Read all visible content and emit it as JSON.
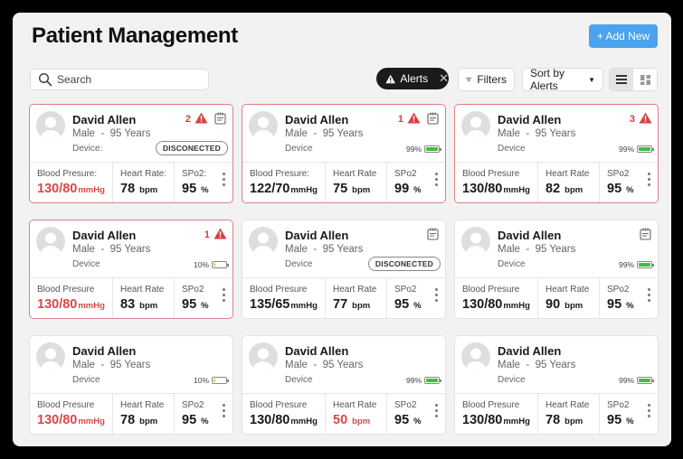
{
  "header": {
    "title": "Patient Management",
    "add_label": "+ Add New"
  },
  "toolbar": {
    "search_placeholder": "Search",
    "alerts_label": "Alerts",
    "filters_label": "Filters",
    "sort_label": "Sort by Alerts"
  },
  "colors": {
    "accent": "#4aa3ec",
    "alert": "#d93b3b",
    "battery_good": "#3fbf3f",
    "battery_low": "#f0c43a"
  },
  "cards": [
    {
      "name": "David Allen",
      "gender": "Male",
      "age": "95 Years",
      "device_label": "Device:",
      "alert_count": "2",
      "status": "DISCONECTED",
      "battery": "",
      "labels": [
        "Blood Presure:",
        "Heart Rate:",
        "SPo2:"
      ],
      "bp": "130/80",
      "bp_unit": "mmHg",
      "hr": "78",
      "hr_unit": "bpm",
      "spo2": "95",
      "spo2_unit": "%"
    },
    {
      "name": "David Allen",
      "gender": "Male",
      "age": "95 Years",
      "device_label": "Device",
      "alert_count": "1",
      "status": "",
      "battery": "99%",
      "labels": [
        "Blood Presure:",
        "Heart Rate",
        "SPo2"
      ],
      "bp": "122/70",
      "bp_unit": "mmHg",
      "hr": "75",
      "hr_unit": "bpm",
      "spo2": "99",
      "spo2_unit": "%"
    },
    {
      "name": "David Allen",
      "gender": "Male",
      "age": "95 Years",
      "device_label": "Device",
      "alert_count": "3",
      "status": "",
      "battery": "99%",
      "labels": [
        "Blood Presure",
        "Heart Rate",
        "SPo2"
      ],
      "bp": "130/80",
      "bp_unit": "mmHg",
      "hr": "82",
      "hr_unit": "bpm",
      "spo2": "95",
      "spo2_unit": "%"
    },
    {
      "name": "David Allen",
      "gender": "Male",
      "age": "95 Years",
      "device_label": "Device",
      "alert_count": "1",
      "status": "",
      "battery": "10%",
      "labels": [
        "Blood Presure",
        "Heart Rate",
        "SPo2"
      ],
      "bp": "130/80",
      "bp_unit": "mmHg",
      "hr": "83",
      "hr_unit": "bpm",
      "spo2": "95",
      "spo2_unit": "%"
    },
    {
      "name": "David Allen",
      "gender": "Male",
      "age": "95 Years",
      "device_label": "Device",
      "alert_count": "",
      "status": "DISCONECTED",
      "battery": "",
      "labels": [
        "Blood Presure",
        "Heart Rate",
        "SPo2"
      ],
      "bp": "135/65",
      "bp_unit": "mmHg",
      "hr": "77",
      "hr_unit": "bpm",
      "spo2": "95",
      "spo2_unit": "%"
    },
    {
      "name": "David Allen",
      "gender": "Male",
      "age": "95 Years",
      "device_label": "Device",
      "alert_count": "",
      "status": "",
      "battery": "99%",
      "labels": [
        "Blood Presure",
        "Heart Rate",
        "SPo2"
      ],
      "bp": "130/80",
      "bp_unit": "mmHg",
      "hr": "90",
      "hr_unit": "bpm",
      "spo2": "95",
      "spo2_unit": "%"
    },
    {
      "name": "David Allen",
      "gender": "Male",
      "age": "95 Years",
      "device_label": "Device",
      "alert_count": "",
      "status": "",
      "battery": "10%",
      "labels": [
        "Blood Presure",
        "Heart Rate",
        "SPo2"
      ],
      "bp": "130/80",
      "bp_unit": "mmHg",
      "hr": "78",
      "hr_unit": "bpm",
      "spo2": "95",
      "spo2_unit": "%"
    },
    {
      "name": "David Allen",
      "gender": "Male",
      "age": "95 Years",
      "device_label": "Device",
      "alert_count": "",
      "status": "",
      "battery": "99%",
      "labels": [
        "Blood Presure",
        "Heart Rate",
        "SPo2"
      ],
      "bp": "130/80",
      "bp_unit": "mmHg",
      "hr": "50",
      "hr_unit": "bpm",
      "spo2": "95",
      "spo2_unit": "%"
    },
    {
      "name": "David Allen",
      "gender": "Male",
      "age": "95 Years",
      "device_label": "Device",
      "alert_count": "",
      "status": "",
      "battery": "99%",
      "labels": [
        "Blood Presure",
        "Heart Rate",
        "SPo2"
      ],
      "bp": "130/80",
      "bp_unit": "mmHg",
      "hr": "78",
      "hr_unit": "bpm",
      "spo2": "95",
      "spo2_unit": "%"
    }
  ]
}
